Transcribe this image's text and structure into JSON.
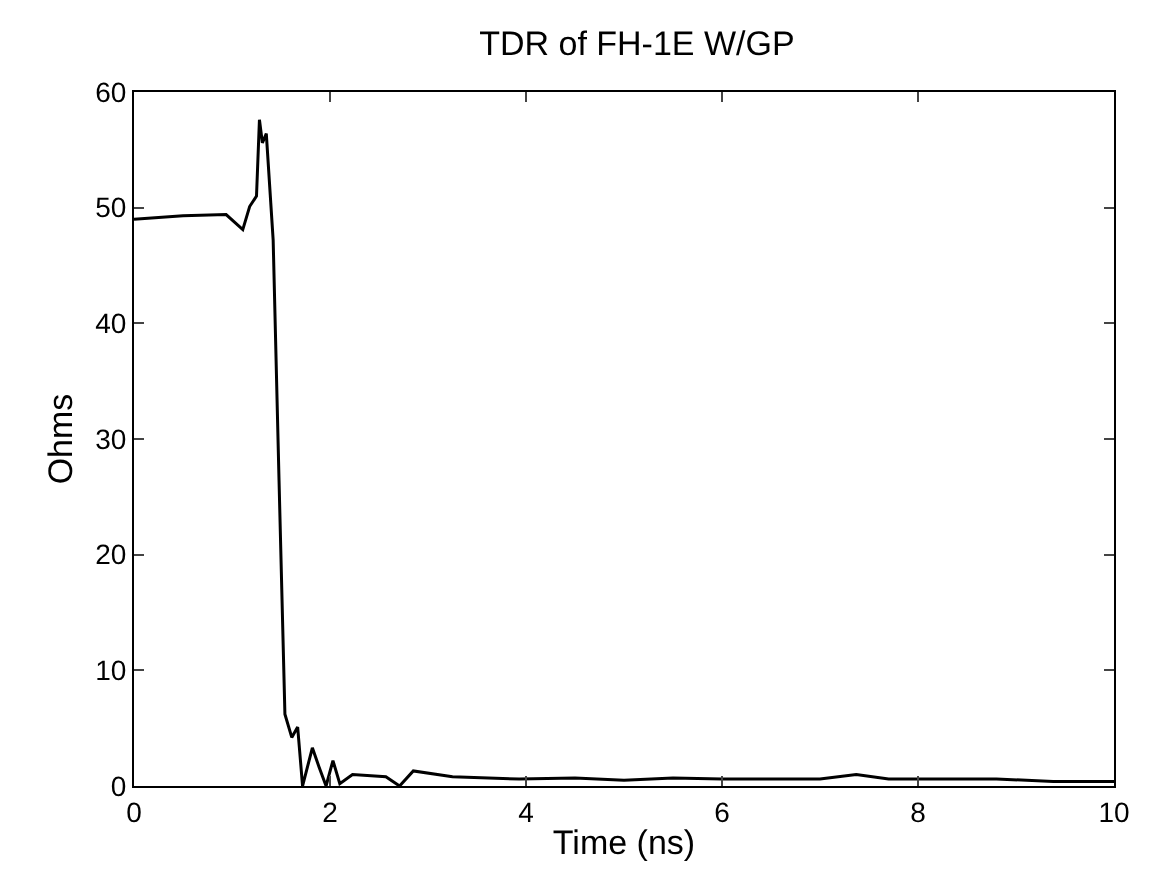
{
  "chart_data": {
    "type": "line",
    "title": "TDR of FH-1E W/GP",
    "xlabel": "Time (ns)",
    "ylabel": "Ohms",
    "series": [
      {
        "color": "#000000",
        "x": [
          0,
          0.5,
          0.94,
          1.11,
          1.18,
          1.25,
          1.28,
          1.31,
          1.35,
          1.42,
          1.48,
          1.54,
          1.61,
          1.67,
          1.72,
          1.82,
          1.89,
          1.96,
          2.03,
          2.1,
          2.23,
          2.57,
          2.71,
          2.85,
          3.25,
          3.93,
          4.5,
          5.0,
          5.5,
          6.0,
          6.5,
          7.0,
          7.37,
          7.7,
          8.2,
          8.8,
          9.38,
          10
        ],
        "values": [
          49.0,
          49.3,
          49.4,
          48.1,
          50.1,
          51.0,
          57.6,
          55.6,
          56.4,
          47.2,
          26.4,
          6.2,
          4.2,
          5.1,
          0,
          3.3,
          1.6,
          0,
          2.2,
          0.2,
          1.0,
          0.8,
          0,
          1.3,
          0.8,
          0.6,
          0.7,
          0.5,
          0.7,
          0.6,
          0.6,
          0.6,
          1.0,
          0.6,
          0.6,
          0.6,
          0.4,
          0.4
        ]
      }
    ],
    "xlim": [
      0,
      10
    ],
    "ylim": [
      0,
      60
    ],
    "xticks": [
      0,
      2,
      4,
      6,
      8,
      10
    ],
    "yticks": [
      0,
      10,
      20,
      30,
      40,
      50,
      60
    ],
    "grid": false,
    "legend": false,
    "marker": "none",
    "line_style": "solid"
  }
}
